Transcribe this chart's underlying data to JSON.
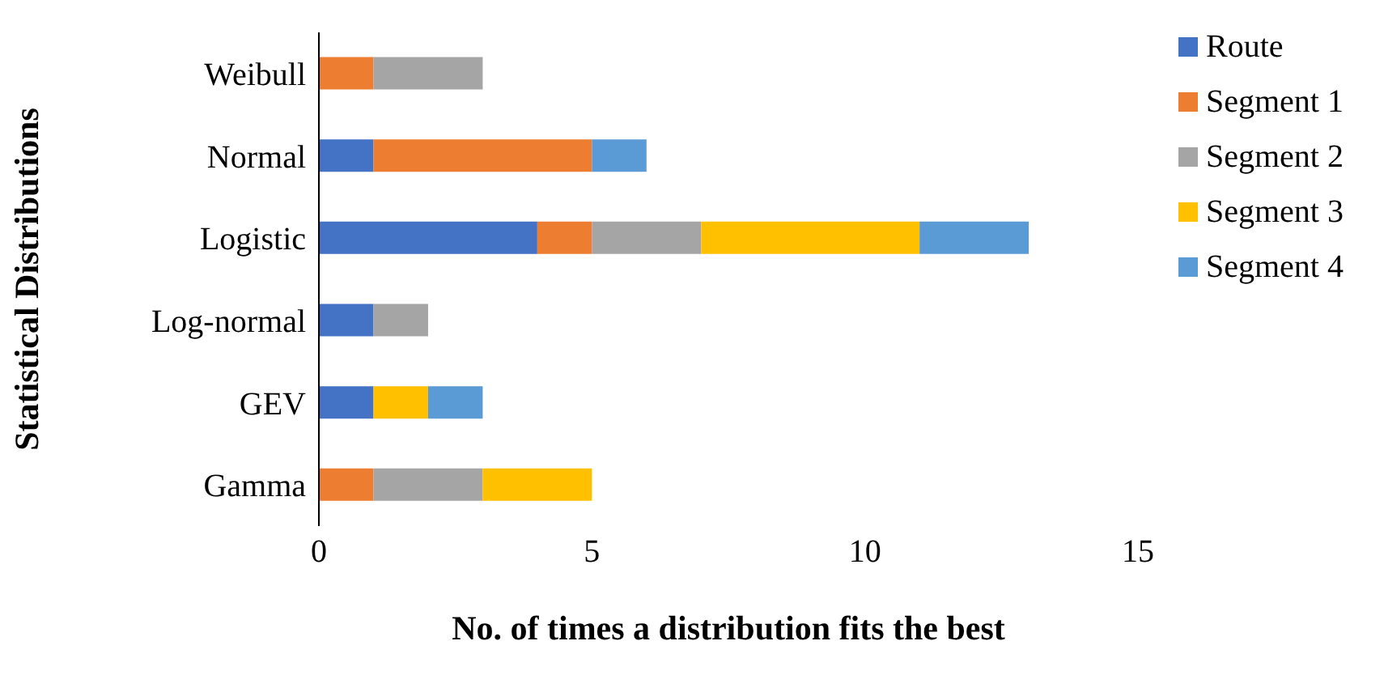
{
  "chart_data": {
    "type": "bar",
    "orientation": "horizontal",
    "stacked": true,
    "xlabel": "No. of times a distribution fits the best",
    "ylabel": "Statistical Distributions",
    "categories": [
      "Weibull",
      "Normal",
      "Logistic",
      "Log-normal",
      "GEV",
      "Gamma"
    ],
    "series": [
      {
        "name": "Route",
        "color": "#4472c4",
        "values": [
          0,
          1,
          4,
          1,
          1,
          0
        ]
      },
      {
        "name": "Segment 1",
        "color": "#ed7d31",
        "values": [
          1,
          4,
          1,
          0,
          0,
          1
        ]
      },
      {
        "name": "Segment 2",
        "color": "#a5a5a5",
        "values": [
          2,
          0,
          2,
          1,
          0,
          2
        ]
      },
      {
        "name": "Segment 3",
        "color": "#ffc000",
        "values": [
          0,
          0,
          4,
          0,
          1,
          2
        ]
      },
      {
        "name": "Segment 4",
        "color": "#5b9bd5",
        "values": [
          0,
          1,
          2,
          0,
          1,
          0
        ]
      }
    ],
    "xlim": [
      0,
      15
    ],
    "xticks": [
      0,
      5,
      10,
      15
    ],
    "grid": false,
    "legend": "right"
  }
}
